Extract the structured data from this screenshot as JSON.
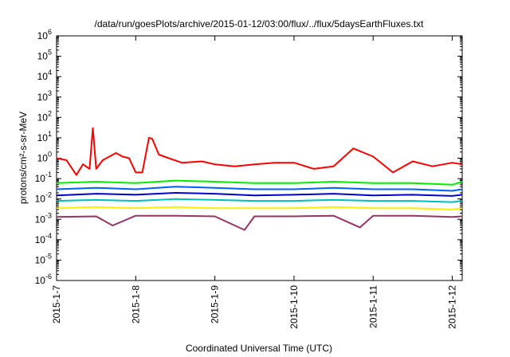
{
  "chart_data": {
    "type": "line",
    "title": "/data/run/goesPlots/archive/2015-01-12/03:00/flux/../flux/5daysEarthFluxes.txt",
    "xlabel": "Coordinated Universal Time (UTC)",
    "ylabel": "protons/cm²-s-sr-MeV",
    "x_range": [
      "2015-01-07T00:00",
      "2015-01-12T03:00"
    ],
    "x_ticks": [
      "2015-1-7",
      "2015-1-8",
      "2015-1-9",
      "2015-1-10",
      "2015-1-11",
      "2015-1-12"
    ],
    "y_scale": "log",
    "ylim": [
      1e-06,
      1000000.0
    ],
    "y_tick_exponents": [
      -6,
      -5,
      -4,
      -3,
      -2,
      -1,
      0,
      1,
      2,
      3,
      4,
      5,
      6
    ],
    "y_tick_base": "10",
    "grid": false,
    "legend": "none",
    "series": [
      {
        "color": "#ff0000",
        "x": [
          "2015-01-07T00:00",
          "2015-01-07T03:00",
          "2015-01-07T06:00",
          "2015-01-07T08:00",
          "2015-01-07T10:00",
          "2015-01-07T11:00",
          "2015-01-07T12:00",
          "2015-01-07T14:00",
          "2015-01-07T16:00",
          "2015-01-07T18:00",
          "2015-01-07T20:00",
          "2015-01-07T22:00",
          "2015-01-08T00:00",
          "2015-01-08T02:00",
          "2015-01-08T04:00",
          "2015-01-08T05:00",
          "2015-01-08T07:00",
          "2015-01-08T10:00",
          "2015-01-08T14:00",
          "2015-01-08T20:00",
          "2015-01-09T00:00",
          "2015-01-09T06:00",
          "2015-01-09T12:00",
          "2015-01-09T18:00",
          "2015-01-10T00:00",
          "2015-01-10T06:00",
          "2015-01-10T12:00",
          "2015-01-10T18:00",
          "2015-01-11T00:00",
          "2015-01-11T06:00",
          "2015-01-11T12:00",
          "2015-01-11T18:00",
          "2015-01-12T00:00",
          "2015-01-12T03:00"
        ],
        "y": [
          1.0,
          0.8,
          0.15,
          0.5,
          0.3,
          30,
          0.3,
          0.8,
          1.2,
          1.8,
          1.2,
          1.0,
          0.2,
          0.2,
          10,
          9,
          1.5,
          1.0,
          0.6,
          0.7,
          0.5,
          0.4,
          0.5,
          0.6,
          0.6,
          0.3,
          0.4,
          3.0,
          1.2,
          0.2,
          0.7,
          0.4,
          0.6,
          0.5
        ]
      },
      {
        "color": "#00ee00",
        "x": [
          "2015-01-07T00:00",
          "2015-01-07T12:00",
          "2015-01-08T00:00",
          "2015-01-08T12:00",
          "2015-01-09T00:00",
          "2015-01-09T12:00",
          "2015-01-10T00:00",
          "2015-01-10T12:00",
          "2015-01-11T00:00",
          "2015-01-11T12:00",
          "2015-01-12T00:00",
          "2015-01-12T03:00"
        ],
        "y": [
          0.06,
          0.07,
          0.06,
          0.08,
          0.07,
          0.06,
          0.06,
          0.07,
          0.06,
          0.06,
          0.05,
          0.07
        ]
      },
      {
        "color": "#0060ff",
        "x": [
          "2015-01-07T00:00",
          "2015-01-07T12:00",
          "2015-01-08T00:00",
          "2015-01-08T12:00",
          "2015-01-09T00:00",
          "2015-01-09T12:00",
          "2015-01-10T00:00",
          "2015-01-10T12:00",
          "2015-01-11T00:00",
          "2015-01-11T12:00",
          "2015-01-12T00:00",
          "2015-01-12T03:00"
        ],
        "y": [
          0.03,
          0.035,
          0.03,
          0.04,
          0.035,
          0.03,
          0.03,
          0.035,
          0.03,
          0.03,
          0.025,
          0.03
        ]
      },
      {
        "color": "#0000cc",
        "x": [
          "2015-01-07T00:00",
          "2015-01-07T12:00",
          "2015-01-08T00:00",
          "2015-01-08T12:00",
          "2015-01-09T00:00",
          "2015-01-09T12:00",
          "2015-01-10T00:00",
          "2015-01-10T12:00",
          "2015-01-11T00:00",
          "2015-01-11T12:00",
          "2015-01-12T00:00",
          "2015-01-12T03:00"
        ],
        "y": [
          0.015,
          0.018,
          0.016,
          0.02,
          0.018,
          0.015,
          0.016,
          0.018,
          0.015,
          0.016,
          0.014,
          0.016
        ]
      },
      {
        "color": "#00bfbf",
        "x": [
          "2015-01-07T00:00",
          "2015-01-07T12:00",
          "2015-01-08T00:00",
          "2015-01-08T12:00",
          "2015-01-09T00:00",
          "2015-01-09T12:00",
          "2015-01-10T00:00",
          "2015-01-10T12:00",
          "2015-01-11T00:00",
          "2015-01-11T12:00",
          "2015-01-12T00:00",
          "2015-01-12T03:00"
        ],
        "y": [
          0.008,
          0.009,
          0.008,
          0.01,
          0.009,
          0.008,
          0.008,
          0.009,
          0.008,
          0.008,
          0.007,
          0.008
        ]
      },
      {
        "color": "#ffee00",
        "x": [
          "2015-01-07T00:00",
          "2015-01-07T12:00",
          "2015-01-08T00:00",
          "2015-01-08T12:00",
          "2015-01-09T00:00",
          "2015-01-09T12:00",
          "2015-01-10T00:00",
          "2015-01-10T12:00",
          "2015-01-11T00:00",
          "2015-01-11T12:00",
          "2015-01-12T00:00",
          "2015-01-12T03:00"
        ],
        "y": [
          0.0035,
          0.004,
          0.0035,
          0.004,
          0.0035,
          0.0035,
          0.0035,
          0.004,
          0.0035,
          0.0035,
          0.003,
          0.0035
        ]
      },
      {
        "color": "#993366",
        "x": [
          "2015-01-07T00:00",
          "2015-01-07T12:00",
          "2015-01-07T17:00",
          "2015-01-08T00:00",
          "2015-01-08T12:00",
          "2015-01-09T00:00",
          "2015-01-09T09:00",
          "2015-01-09T12:00",
          "2015-01-10T00:00",
          "2015-01-10T12:00",
          "2015-01-10T20:00",
          "2015-01-11T00:00",
          "2015-01-11T12:00",
          "2015-01-12T00:00",
          "2015-01-12T03:00"
        ],
        "y": [
          0.0013,
          0.0014,
          0.0005,
          0.0015,
          0.0015,
          0.0014,
          0.0003,
          0.0014,
          0.0014,
          0.0015,
          0.0004,
          0.0015,
          0.0015,
          0.0013,
          0.0014
        ]
      }
    ]
  }
}
